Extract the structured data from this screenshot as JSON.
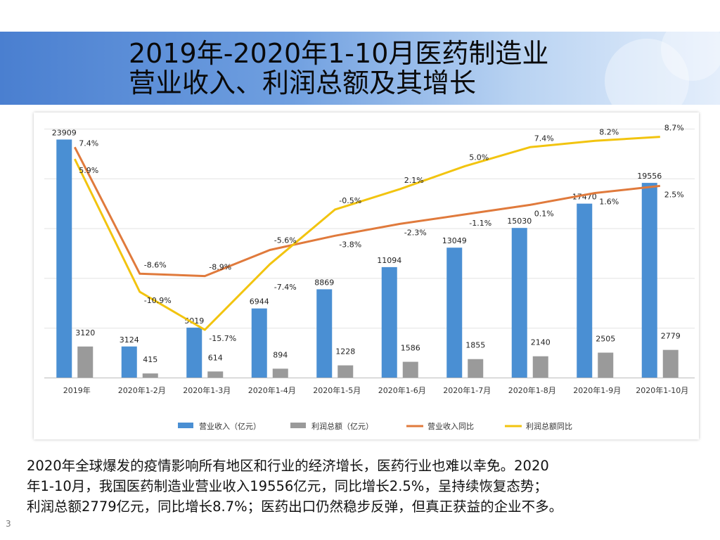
{
  "slide": {
    "title_line1": "2019年-2020年1-10月医药制造业",
    "title_line2": "营业收入、利润总额及其增长",
    "caption_line1": "2020年全球爆发的疫情影响所有地区和行业的经济增长，医药行业也难以幸免。2020",
    "caption_line2": "年1-10月，我国医药制造业营业收入19556亿元，同比增长2.5%，呈持续恢复态势；",
    "caption_line3": "利润总额2779亿元，同比增长8.7%；医药出口仍然稳步反弹，但真正获益的企业不多。",
    "page_number": "3"
  },
  "colors": {
    "revenue": "#4a8fd3",
    "profit": "#9a9a9a",
    "revenue_growth": "#e07a3c",
    "profit_growth": "#f2c40f"
  },
  "chart_data": {
    "type": "bar",
    "categories": [
      "2019年",
      "2020年1-2月",
      "2020年1-3月",
      "2020年1-4月",
      "2020年1-5月",
      "2020年1-6月",
      "2020年1-7月",
      "2020年1-8月",
      "2020年1-9月",
      "2020年1-10月"
    ],
    "series": [
      {
        "name": "营业收入（亿元）",
        "type": "bar",
        "values": [
          23909,
          3124,
          5019,
          6944,
          8869,
          11094,
          13049,
          15030,
          17470,
          19556
        ],
        "labels": [
          "23909",
          "3124",
          "5019",
          "6944",
          "8869",
          "11094",
          "13049",
          "15030",
          "17470",
          "19556"
        ]
      },
      {
        "name": "利润总额（亿元）",
        "type": "bar",
        "values": [
          3120,
          415,
          614,
          894,
          1228,
          1586,
          1855,
          2140,
          2505,
          2779
        ],
        "labels": [
          "3120",
          "415",
          "614",
          "894",
          "1228",
          "1586",
          "1855",
          "2140",
          "2505",
          "2779"
        ]
      },
      {
        "name": "营业收入同比",
        "type": "line",
        "values": [
          7.4,
          -8.6,
          -8.9,
          -5.6,
          -3.8,
          -2.3,
          -1.1,
          0.1,
          1.6,
          2.5
        ],
        "labels": [
          "7.4%",
          "-8.6%",
          "-8.9%",
          "-5.6%",
          "-3.8%",
          "-2.3%",
          "-1.1%",
          "0.1%",
          "1.6%",
          "2.5%"
        ]
      },
      {
        "name": "利润总额同比",
        "type": "line",
        "values": [
          5.9,
          -10.9,
          -15.7,
          -7.4,
          -0.5,
          2.1,
          5.0,
          7.4,
          8.2,
          8.7
        ],
        "labels": [
          "5.9%",
          "-10.9%",
          "-15.7%",
          "-7.4%",
          "-0.5%",
          "2.1%",
          "5.0%",
          "7.4%",
          "8.2%",
          "8.7%"
        ]
      }
    ],
    "bar_axis": [
      0,
      25000
    ],
    "growth_axis_percent": [
      -18,
      10
    ],
    "legend_position": "bottom",
    "gridlines": true
  }
}
